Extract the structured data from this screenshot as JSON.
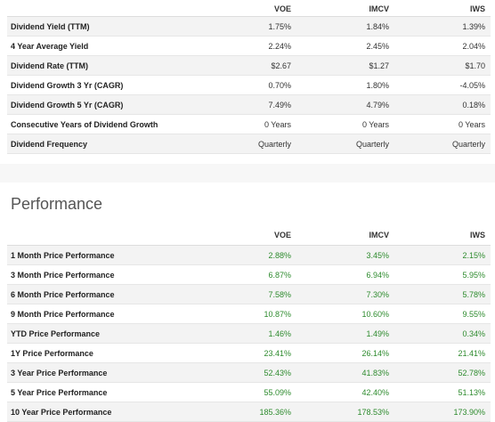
{
  "dividends": {
    "columns": [
      "VOE",
      "IMCV",
      "IWS"
    ],
    "rows": [
      {
        "label": "Dividend Yield (TTM)",
        "values": [
          "1.75%",
          "1.84%",
          "1.39%"
        ]
      },
      {
        "label": "4 Year Average Yield",
        "values": [
          "2.24%",
          "2.45%",
          "2.04%"
        ]
      },
      {
        "label": "Dividend Rate (TTM)",
        "values": [
          "$2.67",
          "$1.27",
          "$1.70"
        ]
      },
      {
        "label": "Dividend Growth 3 Yr (CAGR)",
        "values": [
          "0.70%",
          "1.80%",
          "-4.05%"
        ]
      },
      {
        "label": "Dividend Growth 5 Yr (CAGR)",
        "values": [
          "7.49%",
          "4.79%",
          "0.18%"
        ]
      },
      {
        "label": "Consecutive Years of Dividend Growth",
        "values": [
          "0 Years",
          "0 Years",
          "0 Years"
        ]
      },
      {
        "label": "Dividend Frequency",
        "values": [
          "Quarterly",
          "Quarterly",
          "Quarterly"
        ]
      }
    ]
  },
  "performance": {
    "title": "Performance",
    "columns": [
      "VOE",
      "IMCV",
      "IWS"
    ],
    "positive_color": "#2e8b2e",
    "rows": [
      {
        "label": "1 Month Price Performance",
        "values": [
          "2.88%",
          "3.45%",
          "2.15%"
        ]
      },
      {
        "label": "3 Month Price Performance",
        "values": [
          "6.87%",
          "6.94%",
          "5.95%"
        ]
      },
      {
        "label": "6 Month Price Performance",
        "values": [
          "7.58%",
          "7.30%",
          "5.78%"
        ]
      },
      {
        "label": "9 Month Price Performance",
        "values": [
          "10.87%",
          "10.60%",
          "9.55%"
        ]
      },
      {
        "label": "YTD Price Performance",
        "values": [
          "1.46%",
          "1.49%",
          "0.34%"
        ]
      },
      {
        "label": "1Y Price Performance",
        "values": [
          "23.41%",
          "26.14%",
          "21.41%"
        ]
      },
      {
        "label": "3 Year Price Performance",
        "values": [
          "52.43%",
          "41.83%",
          "52.78%"
        ]
      },
      {
        "label": "5 Year Price Performance",
        "values": [
          "55.09%",
          "42.40%",
          "51.13%"
        ]
      },
      {
        "label": "10 Year Price Performance",
        "values": [
          "185.36%",
          "178.53%",
          "173.90%"
        ]
      }
    ]
  }
}
